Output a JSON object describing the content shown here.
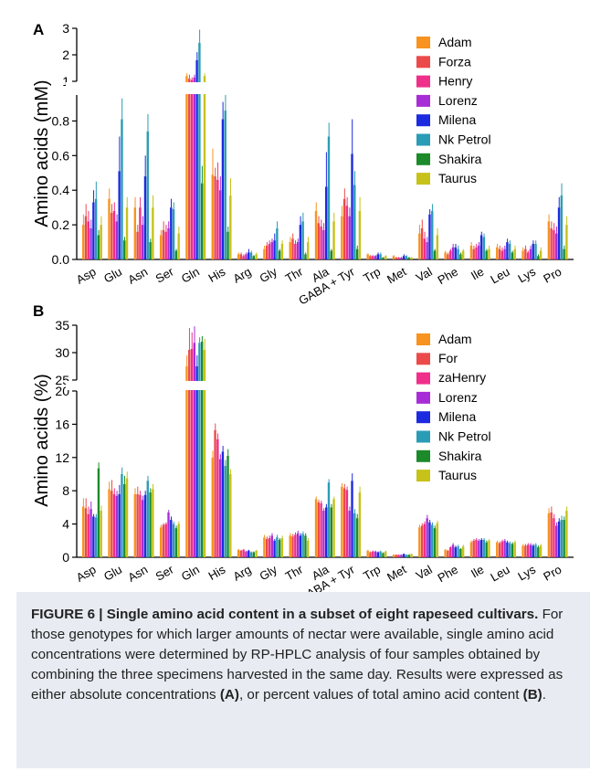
{
  "colors": {
    "Adam": "#f7931e",
    "Forza": "#ec4a4a",
    "Henry": "#ef2f8a",
    "Lorenz": "#a72ed6",
    "Milena": "#1c2ae0",
    "Nk Petrol": "#2a9cb6",
    "Shakira": "#1c8a2a",
    "Taurus": "#c6c21a"
  },
  "chart_data": [
    {
      "type": "bar",
      "panel_label": "A",
      "ylabel": "Amino acids (mM)",
      "y_axis": {
        "broken": true,
        "lower_range": [
          0,
          0.95
        ],
        "upper_range": [
          1,
          3
        ],
        "ticks_lower": [
          "0.0",
          "0.2",
          "0.4",
          "0.6",
          "0.8"
        ],
        "ticks_upper": [
          "1",
          "2",
          "3"
        ]
      },
      "legend_position": "top-right",
      "categories": [
        "Asp",
        "Glu",
        "Asn",
        "Ser",
        "Gln",
        "His",
        "Arg",
        "Gly",
        "Thr",
        "Ala",
        "GABA + Tyr",
        "Trp",
        "Met",
        "Val",
        "Phe",
        "Ile",
        "Leu",
        "Lys",
        "Pro"
      ],
      "series": [
        {
          "name": "Adam",
          "values": [
            0.2,
            0.35,
            0.3,
            0.14,
            1.2,
            0.49,
            0.03,
            0.06,
            0.1,
            0.28,
            0.25,
            0.03,
            0.02,
            0.15,
            0.04,
            0.08,
            0.07,
            0.05,
            0.22
          ],
          "errors": [
            0.06,
            0.06,
            0.06,
            0.03,
            0.1,
            0.15,
            0.01,
            0.02,
            0.03,
            0.05,
            0.06,
            0.005,
            0.005,
            0.05,
            0.01,
            0.02,
            0.02,
            0.02,
            0.04
          ]
        },
        {
          "name": "Forza",
          "values": [
            0.25,
            0.27,
            0.16,
            0.17,
            1.1,
            0.48,
            0.03,
            0.08,
            0.12,
            0.21,
            0.35,
            0.02,
            0.01,
            0.18,
            0.03,
            0.06,
            0.06,
            0.06,
            0.18
          ],
          "errors": [
            0.07,
            0.05,
            0.04,
            0.05,
            0.15,
            0.05,
            0.01,
            0.02,
            0.03,
            0.04,
            0.06,
            0.005,
            0.005,
            0.05,
            0.01,
            0.02,
            0.02,
            0.02,
            0.04
          ]
        },
        {
          "name": "Henry",
          "values": [
            0.22,
            0.28,
            0.3,
            0.16,
            1.05,
            0.46,
            0.02,
            0.09,
            0.09,
            0.19,
            0.31,
            0.02,
            0.01,
            0.12,
            0.05,
            0.07,
            0.05,
            0.04,
            0.17
          ],
          "errors": [
            0.06,
            0.05,
            0.06,
            0.04,
            0.1,
            0.1,
            0.01,
            0.02,
            0.02,
            0.04,
            0.05,
            0.005,
            0.005,
            0.04,
            0.01,
            0.02,
            0.02,
            0.01,
            0.04
          ]
        },
        {
          "name": "Lorenz",
          "values": [
            0.18,
            0.22,
            0.2,
            0.18,
            1.15,
            0.4,
            0.03,
            0.1,
            0.1,
            0.17,
            0.25,
            0.02,
            0.01,
            0.1,
            0.07,
            0.08,
            0.06,
            0.06,
            0.15
          ],
          "errors": [
            0.05,
            0.04,
            0.05,
            0.04,
            0.1,
            0.08,
            0.01,
            0.02,
            0.02,
            0.04,
            0.05,
            0.005,
            0.005,
            0.03,
            0.02,
            0.02,
            0.02,
            0.02,
            0.04
          ]
        },
        {
          "name": "Milena",
          "values": [
            0.33,
            0.51,
            0.48,
            0.3,
            1.8,
            0.81,
            0.04,
            0.11,
            0.2,
            0.42,
            0.61,
            0.03,
            0.02,
            0.26,
            0.07,
            0.14,
            0.1,
            0.09,
            0.3
          ],
          "errors": [
            0.07,
            0.2,
            0.12,
            0.05,
            0.3,
            0.1,
            0.02,
            0.04,
            0.05,
            0.2,
            0.2,
            0.01,
            0.01,
            0.03,
            0.02,
            0.02,
            0.02,
            0.02,
            0.06
          ]
        },
        {
          "name": "Nk Petrol",
          "values": [
            0.35,
            0.81,
            0.74,
            0.29,
            2.45,
            0.86,
            0.04,
            0.18,
            0.22,
            0.71,
            0.43,
            0.03,
            0.02,
            0.28,
            0.06,
            0.13,
            0.09,
            0.09,
            0.37
          ],
          "errors": [
            0.1,
            0.12,
            0.1,
            0.04,
            0.5,
            0.1,
            0.01,
            0.04,
            0.05,
            0.08,
            0.08,
            0.01,
            0.005,
            0.04,
            0.02,
            0.02,
            0.02,
            0.02,
            0.07
          ]
        },
        {
          "name": "Shakira",
          "values": [
            0.14,
            0.11,
            0.1,
            0.05,
            0.44,
            0.16,
            0.02,
            0.05,
            0.03,
            0.05,
            0.06,
            0.01,
            0.01,
            0.05,
            0.03,
            0.05,
            0.04,
            0.02,
            0.06
          ],
          "errors": [
            0.03,
            0.02,
            0.02,
            0.01,
            0.1,
            0.03,
            0.005,
            0.01,
            0.01,
            0.01,
            0.02,
            0.005,
            0.005,
            0.01,
            0.01,
            0.01,
            0.01,
            0.01,
            0.02
          ]
        },
        {
          "name": "Taurus",
          "values": [
            0.2,
            0.3,
            0.3,
            0.15,
            1.2,
            0.37,
            0.03,
            0.09,
            0.1,
            0.22,
            0.28,
            0.02,
            0.01,
            0.14,
            0.05,
            0.06,
            0.06,
            0.05,
            0.2
          ],
          "errors": [
            0.05,
            0.06,
            0.07,
            0.04,
            0.1,
            0.1,
            0.01,
            0.02,
            0.03,
            0.05,
            0.08,
            0.005,
            0.005,
            0.04,
            0.01,
            0.02,
            0.02,
            0.02,
            0.05
          ]
        }
      ]
    },
    {
      "type": "bar",
      "panel_label": "B",
      "ylabel": "Amino acids (%)",
      "y_axis": {
        "broken": true,
        "lower_range": [
          0,
          20
        ],
        "upper_range": [
          25,
          35
        ],
        "ticks_lower": [
          "0",
          "4",
          "8",
          "12",
          "16",
          "20"
        ],
        "ticks_upper": [
          "25",
          "30",
          "35"
        ]
      },
      "legend_position": "top-right",
      "categories": [
        "Asp",
        "Glu",
        "Asn",
        "Ser",
        "Gln",
        "His",
        "Arg",
        "Gly",
        "Thr",
        "Ala",
        "GABA + Tyr",
        "Trp",
        "Met",
        "Val",
        "Phe",
        "Ile",
        "Leu",
        "Lys",
        "Pro"
      ],
      "series": [
        {
          "name": "Adam",
          "values": [
            6.1,
            8.2,
            7.6,
            3.6,
            27.5,
            12.0,
            0.9,
            2.4,
            2.6,
            7.0,
            8.5,
            0.8,
            0.3,
            3.6,
            0.9,
            1.8,
            1.8,
            1.4,
            5.3
          ],
          "errors": [
            1.0,
            0.9,
            0.7,
            0.3,
            2.0,
            0.8,
            0.1,
            0.3,
            0.3,
            0.3,
            0.4,
            0.1,
            0.05,
            0.3,
            0.1,
            0.2,
            0.2,
            0.2,
            0.6
          ]
        },
        {
          "name": "Forza",
          "values": [
            5.9,
            8.0,
            7.6,
            3.9,
            30.5,
            15.3,
            0.8,
            2.2,
            2.5,
            6.6,
            8.3,
            0.6,
            0.3,
            3.8,
            0.8,
            2.0,
            1.7,
            1.4,
            5.4
          ],
          "errors": [
            1.2,
            1.3,
            0.9,
            0.2,
            4.0,
            0.8,
            0.1,
            0.3,
            0.3,
            0.3,
            0.5,
            0.1,
            0.05,
            0.3,
            0.1,
            0.2,
            0.2,
            0.2,
            0.7
          ]
        },
        {
          "name": "Henry",
          "values": [
            5.2,
            7.6,
            7.5,
            4.0,
            30.7,
            14.2,
            0.9,
            2.3,
            2.7,
            6.5,
            8.1,
            0.7,
            0.3,
            4.0,
            1.2,
            2.1,
            1.9,
            1.5,
            4.7
          ],
          "errors": [
            0.9,
            0.7,
            0.5,
            0.2,
            3.0,
            0.7,
            0.1,
            0.3,
            0.3,
            0.3,
            0.4,
            0.1,
            0.05,
            0.3,
            0.1,
            0.2,
            0.2,
            0.2,
            0.5
          ]
        },
        {
          "name": "Lorenz",
          "values": [
            5.8,
            7.4,
            6.9,
            5.4,
            31.8,
            11.8,
            0.7,
            2.6,
            2.9,
            5.6,
            5.6,
            0.7,
            0.3,
            4.7,
            1.5,
            2.0,
            2.0,
            1.5,
            3.8
          ],
          "errors": [
            0.9,
            0.6,
            0.5,
            0.3,
            3.0,
            0.6,
            0.1,
            0.3,
            0.3,
            0.3,
            0.5,
            0.1,
            0.05,
            0.4,
            0.2,
            0.2,
            0.2,
            0.2,
            0.4
          ]
        },
        {
          "name": "Milena",
          "values": [
            4.9,
            7.6,
            7.5,
            4.5,
            27.5,
            12.7,
            0.8,
            2.0,
            2.6,
            6.0,
            9.2,
            0.6,
            0.4,
            4.2,
            1.2,
            2.1,
            1.8,
            1.4,
            4.3
          ],
          "errors": [
            0.3,
            1.1,
            0.5,
            0.4,
            2.0,
            0.7,
            0.1,
            0.2,
            0.3,
            0.4,
            0.9,
            0.1,
            0.05,
            0.3,
            0.2,
            0.2,
            0.2,
            0.2,
            0.4
          ]
        },
        {
          "name": "Nk Petrol",
          "values": [
            4.8,
            10.0,
            9.2,
            4.0,
            31.8,
            11.0,
            0.6,
            2.4,
            2.8,
            9.0,
            5.3,
            0.7,
            0.3,
            3.9,
            1.3,
            2.1,
            1.7,
            1.5,
            4.5
          ],
          "errors": [
            0.4,
            0.8,
            0.6,
            0.3,
            1.0,
            0.7,
            0.1,
            0.3,
            0.3,
            0.4,
            0.5,
            0.1,
            0.05,
            0.3,
            0.2,
            0.2,
            0.2,
            0.2,
            0.5
          ]
        },
        {
          "name": "Shakira",
          "values": [
            10.7,
            8.8,
            7.8,
            3.5,
            32.0,
            12.2,
            0.6,
            2.1,
            2.6,
            6.0,
            4.7,
            0.5,
            0.3,
            3.5,
            1.0,
            1.8,
            1.6,
            1.2,
            4.5
          ],
          "errors": [
            0.7,
            1.0,
            0.5,
            0.3,
            1.0,
            0.8,
            0.1,
            0.2,
            0.3,
            0.4,
            0.5,
            0.1,
            0.05,
            0.3,
            0.1,
            0.2,
            0.2,
            0.2,
            0.4
          ]
        },
        {
          "name": "Taurus",
          "values": [
            5.6,
            9.5,
            8.2,
            4.0,
            30.5,
            10.0,
            0.8,
            2.3,
            2.0,
            7.0,
            7.8,
            0.7,
            0.4,
            4.1,
            1.3,
            2.0,
            1.8,
            1.4,
            5.6
          ],
          "errors": [
            0.6,
            0.8,
            0.6,
            0.3,
            2.0,
            0.6,
            0.1,
            0.3,
            0.3,
            0.3,
            0.7,
            0.1,
            0.05,
            0.3,
            0.2,
            0.2,
            0.2,
            0.2,
            0.5
          ]
        }
      ],
      "legend_labels": [
        "Adam",
        "For",
        "zaHenry",
        "Lorenz",
        "Milena",
        "Nk Petrol",
        "Shakira",
        "Taurus"
      ]
    }
  ],
  "caption": {
    "figure_label": "FIGURE 6 | Single amino acid content in a subset of eight rapeseed cultivars.",
    "body": " For those genotypes for which larger amounts of nectar were available, single amino acid concentrations were determined by RP-HPLC analysis of four samples obtained by combining the three specimens harvested in the same day. Results were expressed as either absolute concentrations ",
    "ref_a": "(A)",
    "mid": ", or percent values of total amino acid content ",
    "ref_b": "(B)",
    "end": "."
  }
}
